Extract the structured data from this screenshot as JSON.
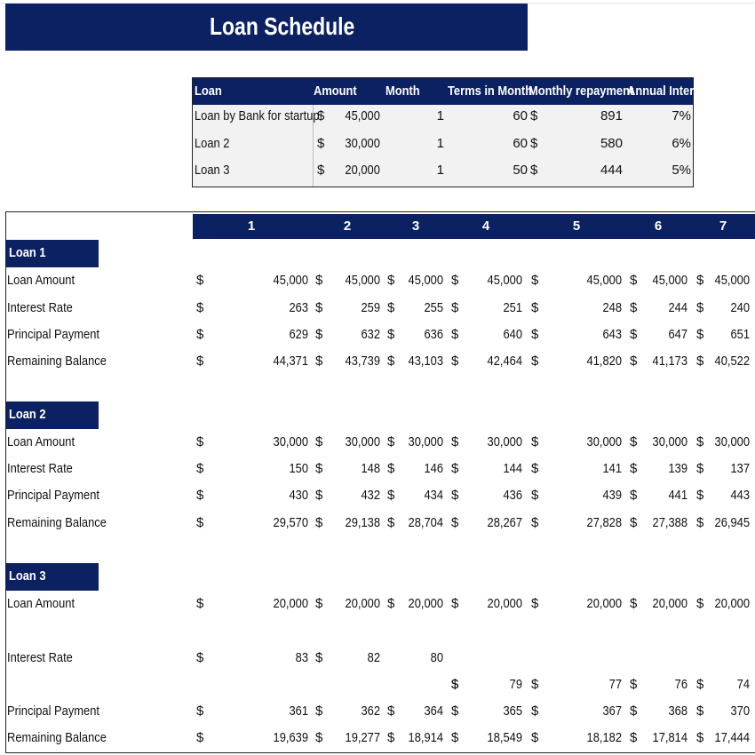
{
  "title": "Loan Schedule",
  "summary": {
    "headers": [
      "Loan",
      "Amount",
      "Month",
      "Terms in Month",
      "Monthly repayment",
      "Annual Interes"
    ],
    "rows": [
      {
        "loan": "Loan by Bank for startup",
        "cur": "$",
        "amount": "45,000",
        "month": "1",
        "terms": "60",
        "cur2": "$",
        "repayment": "891",
        "interest": "7%"
      },
      {
        "loan": "Loan 2",
        "cur": "$",
        "amount": "30,000",
        "month": "1",
        "terms": "60",
        "cur2": "$",
        "repayment": "580",
        "interest": "6%"
      },
      {
        "loan": "Loan 3",
        "cur": "$",
        "amount": "20,000",
        "month": "1",
        "terms": "50",
        "cur2": "$",
        "repayment": "444",
        "interest": "5%"
      }
    ]
  },
  "months": [
    "1",
    "2",
    "3",
    "4",
    "5",
    "6",
    "7"
  ],
  "currency": "$",
  "loans": [
    {
      "name": "Loan 1",
      "rows": [
        {
          "label": "Loan Amount",
          "values": [
            "45,000",
            "45,000",
            "45,000",
            "45,000",
            "45,000",
            "45,000",
            "45,000"
          ]
        },
        {
          "label": "Interest Rate",
          "values": [
            "263",
            "259",
            "255",
            "251",
            "248",
            "244",
            "240"
          ]
        },
        {
          "label": "Principal Payment",
          "values": [
            "629",
            "632",
            "636",
            "640",
            "643",
            "647",
            "651"
          ]
        },
        {
          "label": "Remaining Balance",
          "values": [
            "44,371",
            "43,739",
            "43,103",
            "42,464",
            "41,820",
            "41,173",
            "40,522"
          ]
        }
      ]
    },
    {
      "name": "Loan 2",
      "rows": [
        {
          "label": "Loan Amount",
          "values": [
            "30,000",
            "30,000",
            "30,000",
            "30,000",
            "30,000",
            "30,000",
            "30,000"
          ]
        },
        {
          "label": "Interest Rate",
          "values": [
            "150",
            "148",
            "146",
            "144",
            "141",
            "139",
            "137"
          ]
        },
        {
          "label": "Principal Payment",
          "values": [
            "430",
            "432",
            "434",
            "436",
            "439",
            "441",
            "443"
          ]
        },
        {
          "label": "Remaining Balance",
          "values": [
            "29,570",
            "29,138",
            "28,704",
            "28,267",
            "27,828",
            "27,388",
            "26,945"
          ]
        }
      ]
    },
    {
      "name": "Loan 3",
      "rows": [
        {
          "label": "Loan Amount",
          "values": [
            "20,000",
            "20,000",
            "20,000",
            "20,000",
            "20,000",
            "20,000",
            "20,000"
          ]
        },
        {
          "label": "Interest Rate",
          "values": [
            "83",
            "82",
            "80",
            "79",
            "77",
            "76",
            "74"
          ]
        },
        {
          "label": "Principal Payment",
          "values": [
            "361",
            "362",
            "364",
            "365",
            "367",
            "368",
            "370"
          ]
        },
        {
          "label": "Remaining Balance",
          "values": [
            "19,639",
            "19,277",
            "18,914",
            "18,549",
            "18,182",
            "17,814",
            "17,444"
          ]
        }
      ]
    }
  ]
}
